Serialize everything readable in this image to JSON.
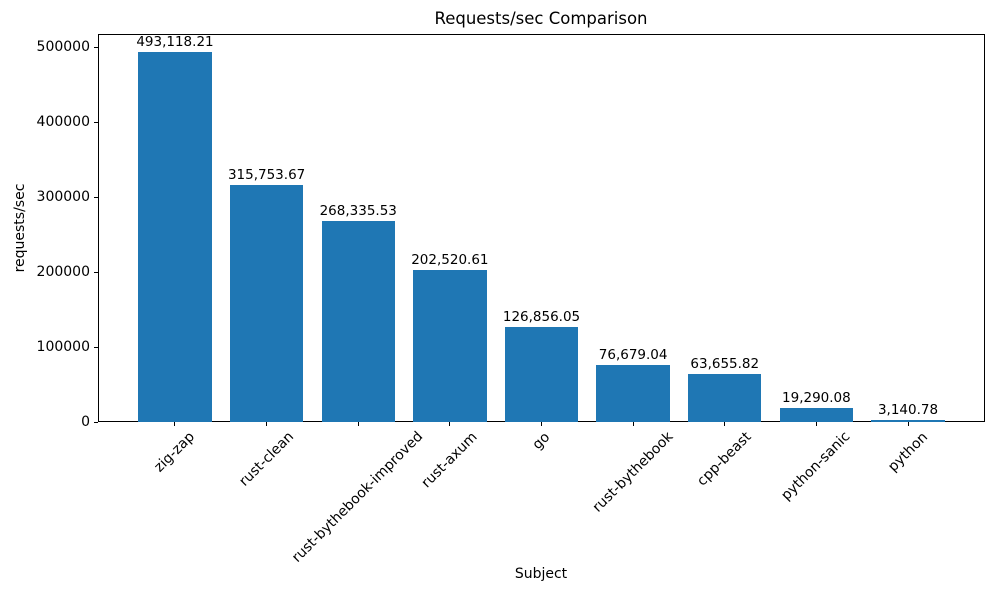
{
  "chart_data": {
    "type": "bar",
    "title": "Requests/sec Comparison",
    "xlabel": "Subject",
    "ylabel": "requests/sec",
    "categories": [
      "zig-zap",
      "rust-clean",
      "rust-bythebook-improved",
      "rust-axum",
      "go",
      "rust-bythebook",
      "cpp-beast",
      "python-sanic",
      "python"
    ],
    "values": [
      493118.21,
      315753.67,
      268335.53,
      202520.61,
      126856.05,
      76679.04,
      63655.82,
      19290.08,
      3140.78
    ],
    "bar_value_labels": [
      "493,118.21",
      "315,753.67",
      "268,335.53",
      "202,520.61",
      "126,856.05",
      "76,679.04",
      "63,655.82",
      "19,290.08",
      "3,140.78"
    ],
    "yticks": [
      0,
      100000,
      200000,
      300000,
      400000,
      500000
    ],
    "ytick_labels": [
      "0",
      "100000",
      "200000",
      "300000",
      "400000",
      "500000"
    ],
    "ylim": [
      0,
      517774.12
    ],
    "bar_color": "#1f77b4",
    "bar_width_fraction": 0.8,
    "grid": false,
    "legend_position": "none",
    "x_tick_rotation_deg": 45
  }
}
